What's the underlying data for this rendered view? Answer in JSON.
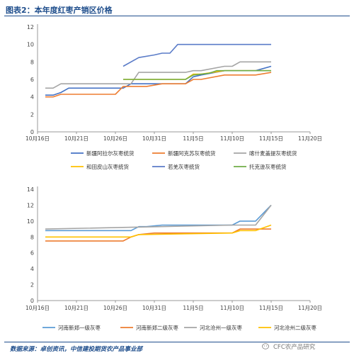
{
  "page": {
    "title": "图表2：本年度红枣产销区价格",
    "source": "数据来源：卓创资讯，中信建投期货农产品事业部",
    "watermark": "CFC农产品研究"
  },
  "chart_data": [
    {
      "type": "line",
      "title": "",
      "xlabel": "",
      "ylabel": "",
      "x_ticks": [
        "10月16日",
        "10月21日",
        "10月26日",
        "10月31日",
        "11月5日",
        "11月10日",
        "11月15日",
        "11月20日"
      ],
      "ylim": [
        0,
        12
      ],
      "y_ticks": [
        0,
        2,
        4,
        6,
        8,
        10,
        12
      ],
      "grid": false,
      "legend": "bottom",
      "series": [
        {
          "name": "新疆阿拉尔灰枣统货",
          "color": "#4472c4",
          "points": [
            [
              "10-17",
              4.2
            ],
            [
              "10-18",
              4.2
            ],
            [
              "10-19",
              4.5
            ],
            [
              "10-20",
              5.0
            ],
            [
              "10-25",
              5.0
            ],
            [
              "10-27",
              5.0
            ],
            [
              "10-28",
              5.5
            ],
            [
              "11-04",
              5.5
            ],
            [
              "11-05",
              6.3
            ],
            [
              "11-06",
              6.5
            ],
            [
              "11-09",
              7.0
            ],
            [
              "11-13",
              7.0
            ],
            [
              "11-15",
              7.5
            ]
          ]
        },
        {
          "name": "新疆阿克苏灰枣统货",
          "color": "#ed7d31",
          "points": [
            [
              "10-17",
              4.0
            ],
            [
              "10-18",
              4.0
            ],
            [
              "10-19",
              4.3
            ],
            [
              "10-26",
              4.3
            ],
            [
              "10-27",
              5.2
            ],
            [
              "10-30",
              5.2
            ],
            [
              "11-01",
              5.5
            ],
            [
              "11-04",
              5.5
            ],
            [
              "11-05",
              6.0
            ],
            [
              "11-06",
              6.0
            ],
            [
              "11-09",
              6.5
            ],
            [
              "11-13",
              6.5
            ],
            [
              "11-15",
              6.8
            ]
          ]
        },
        {
          "name": "喀什麦盖提灰枣统货",
          "color": "#a5a5a5",
          "points": [
            [
              "10-17",
              5.0
            ],
            [
              "10-18",
              5.0
            ],
            [
              "10-19",
              5.5
            ],
            [
              "10-28",
              5.5
            ],
            [
              "10-29",
              6.8
            ],
            [
              "11-04",
              6.8
            ],
            [
              "11-05",
              7.0
            ],
            [
              "11-06",
              7.0
            ],
            [
              "11-09",
              7.5
            ],
            [
              "11-10",
              7.5
            ],
            [
              "11-11",
              8.0
            ],
            [
              "11-15",
              8.0
            ]
          ]
        },
        {
          "name": "和田皮山灰枣统货",
          "color": "#ffc000",
          "points": [
            [
              "10-27",
              6.0
            ],
            [
              "11-04",
              6.0
            ],
            [
              "11-05",
              6.6
            ],
            [
              "11-06",
              6.6
            ],
            [
              "11-09",
              7.0
            ],
            [
              "11-15",
              7.0
            ]
          ]
        },
        {
          "name": "若羌灰枣统货",
          "color": "#5b7cc8",
          "points": [
            [
              "10-27",
              7.5
            ],
            [
              "10-29",
              8.5
            ],
            [
              "10-31",
              8.8
            ],
            [
              "11-01",
              9.0
            ],
            [
              "11-02",
              9.0
            ],
            [
              "11-03",
              10.0
            ],
            [
              "11-15",
              10.0
            ]
          ]
        },
        {
          "name": "托克逊灰枣统货",
          "color": "#70ad47",
          "points": [
            [
              "10-27",
              6.0
            ],
            [
              "11-04",
              6.0
            ],
            [
              "11-05",
              6.5
            ],
            [
              "11-07",
              6.7
            ],
            [
              "11-08",
              7.0
            ],
            [
              "11-15",
              7.0
            ]
          ]
        }
      ]
    },
    {
      "type": "line",
      "title": "",
      "xlabel": "",
      "ylabel": "",
      "x_ticks": [
        "10月16日",
        "10月21日",
        "10月26日",
        "10月31日",
        "11月5日",
        "11月10日",
        "11月15日",
        "11月20日"
      ],
      "ylim": [
        0,
        14
      ],
      "y_ticks": [
        0,
        2,
        4,
        6,
        8,
        10,
        12,
        14
      ],
      "grid": false,
      "legend": "bottom",
      "series": [
        {
          "name": "河南新郑一级灰枣",
          "color": "#5b9bd5",
          "points": [
            [
              "10-17",
              8.8
            ],
            [
              "10-28",
              8.8
            ],
            [
              "10-29",
              9.3
            ],
            [
              "10-30",
              9.3
            ],
            [
              "11-01",
              9.5
            ],
            [
              "11-10",
              9.5
            ],
            [
              "11-11",
              10.0
            ],
            [
              "11-13",
              10.0
            ],
            [
              "11-15",
              12.0
            ]
          ]
        },
        {
          "name": "河南新郑二级灰枣",
          "color": "#ed7d31",
          "points": [
            [
              "10-17",
              7.5
            ],
            [
              "10-27",
              7.5
            ],
            [
              "10-28",
              8.0
            ],
            [
              "10-29",
              8.3
            ],
            [
              "10-31",
              8.5
            ],
            [
              "11-10",
              8.5
            ],
            [
              "11-11",
              9.0
            ],
            [
              "11-15",
              9.0
            ]
          ]
        },
        {
          "name": "河北沧州一级灰枣",
          "color": "#a5a5a5",
          "points": [
            [
              "10-17",
              9.0
            ],
            [
              "11-10",
              9.5
            ],
            [
              "11-13",
              9.5
            ],
            [
              "11-15",
              12.0
            ]
          ]
        },
        {
          "name": "河北沧州二级灰枣",
          "color": "#ffc000",
          "points": [
            [
              "10-17",
              8.0
            ],
            [
              "10-28",
              8.0
            ],
            [
              "10-29",
              8.3
            ],
            [
              "11-10",
              8.5
            ],
            [
              "11-11",
              8.8
            ],
            [
              "11-13",
              8.8
            ],
            [
              "11-15",
              9.5
            ]
          ]
        }
      ]
    }
  ]
}
